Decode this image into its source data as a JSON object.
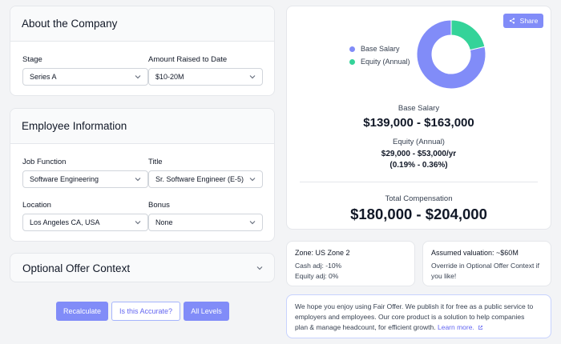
{
  "about_company": {
    "title": "About the Company",
    "stage_label": "Stage",
    "stage_value": "Series A",
    "raised_label": "Amount Raised to Date",
    "raised_value": "$10-20M"
  },
  "employee_info": {
    "title": "Employee Information",
    "job_function_label": "Job Function",
    "job_function_value": "Software Engineering",
    "title_label": "Title",
    "title_value": "Sr. Software Engineer (E-5)",
    "location_label": "Location",
    "location_value": "Los Angeles CA, USA",
    "bonus_label": "Bonus",
    "bonus_value": "None"
  },
  "optional_offer": {
    "title": "Optional Offer Context"
  },
  "actions": {
    "recalculate": "Recalculate",
    "accurate": "Is this Accurate?",
    "all_levels": "All Levels"
  },
  "results": {
    "share_label": "Share",
    "base_salary_label": "Base Salary",
    "base_salary_range": "$139,000 - $163,000",
    "equity_label": "Equity (Annual)",
    "equity_range": "$29,000 - $53,000/yr",
    "equity_percent": "(0.19% - 0.36%)",
    "total_label": "Total Compensation",
    "total_range": "$180,000 - $204,000"
  },
  "chart_data": {
    "type": "pie",
    "categories": [
      "Base Salary",
      "Equity (Annual)"
    ],
    "values": [
      151000,
      41000
    ],
    "colors": [
      "#818cf8",
      "#34d399"
    ],
    "legend_position": "left"
  },
  "zone": {
    "title": "Zone: US Zone 2",
    "cash_adj": "Cash adj: -10%",
    "equity_adj": "Equity adj: 0%"
  },
  "valuation": {
    "title": "Assumed valuation: ~$60M",
    "line1": "Override in Optional Offer Context if",
    "line2": "you like!"
  },
  "footer_note": {
    "line1": "We hope you enjoy using Fair Offer. We publish it for free as a public service to",
    "line2": "employers and employees. Our core product is a solution to help companies",
    "line3_text": "plan & manage headcount, for efficient growth.",
    "learn_more": "Learn more."
  },
  "colors": {
    "accent": "#818cf8",
    "equity": "#34d399",
    "link": "#6366f1"
  }
}
